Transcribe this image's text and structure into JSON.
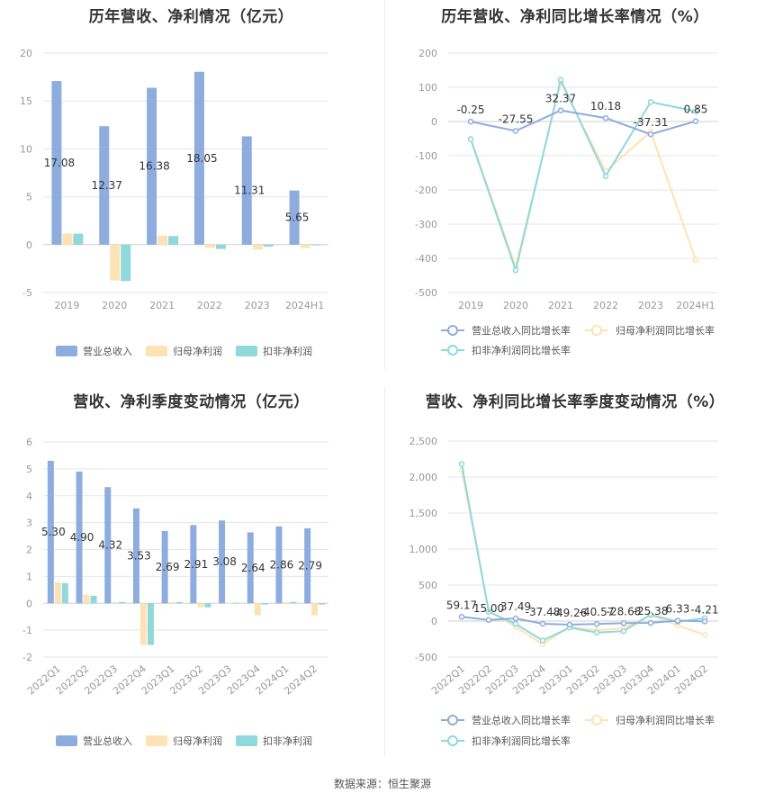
{
  "colors": {
    "revenue": "#8eadde",
    "net_profit": "#fde3b4",
    "deducted_profit": "#8fd8dc",
    "grid": "#e6e6e6",
    "axis_text": "#999999"
  },
  "footer": "数据来源：恒生聚源",
  "chart_data": [
    {
      "type": "bar",
      "title": "历年营收、净利情况（亿元）",
      "categories": [
        "2019",
        "2020",
        "2021",
        "2022",
        "2023",
        "2024H1"
      ],
      "series": [
        {
          "name": "营业总收入",
          "values": [
            17.08,
            12.37,
            16.38,
            18.05,
            11.31,
            5.65
          ]
        },
        {
          "name": "归母净利润",
          "values": [
            1.15,
            -3.75,
            0.95,
            -0.35,
            -0.5,
            -0.35
          ]
        },
        {
          "name": "扣非净利润",
          "values": [
            1.15,
            -3.8,
            0.9,
            -0.45,
            -0.2,
            -0.05
          ]
        }
      ],
      "data_labels": [
        "17.08",
        "12.37",
        "16.38",
        "18.05",
        "11.31",
        "5.65"
      ],
      "ylim": [
        -5,
        20
      ],
      "yticks": [
        "20",
        "15",
        "10",
        "5",
        "0",
        "-5"
      ],
      "legend": "bottom"
    },
    {
      "type": "line",
      "title": "历年营收、净利同比增长率情况（%）",
      "categories": [
        "2019",
        "2020",
        "2021",
        "2022",
        "2023",
        "2024H1"
      ],
      "series": [
        {
          "name": "营业总收入同比增长率",
          "values": [
            -0.25,
            -27.55,
            32.37,
            10.18,
            -37.31,
            0.85
          ]
        },
        {
          "name": "归母净利润同比增长率",
          "values": [
            -50,
            -425,
            115,
            -145,
            -30,
            -405
          ]
        },
        {
          "name": "扣非净利润同比增长率",
          "values": [
            -52,
            -435,
            122,
            -160,
            57,
            30
          ]
        }
      ],
      "data_labels": [
        "-0.25",
        "-27.55",
        "32.37",
        "10.18",
        "-37.31",
        "0.85"
      ],
      "ylim": [
        -500,
        200
      ],
      "yticks": [
        "200",
        "100",
        "0",
        "-100",
        "-200",
        "-300",
        "-400",
        "-500"
      ],
      "legend": "bottom"
    },
    {
      "type": "bar",
      "title": "营收、净利季度变动情况（亿元）",
      "categories": [
        "2022Q1",
        "2022Q2",
        "2022Q3",
        "2022Q4",
        "2023Q1",
        "2023Q2",
        "2023Q3",
        "2023Q4",
        "2024Q1",
        "2024Q2"
      ],
      "series": [
        {
          "name": "营业总收入",
          "values": [
            5.3,
            4.9,
            4.32,
            3.53,
            2.69,
            2.91,
            3.08,
            2.64,
            2.86,
            2.79
          ]
        },
        {
          "name": "归母净利润",
          "values": [
            0.78,
            0.32,
            0.05,
            -1.55,
            0.05,
            -0.15,
            0.02,
            -0.45,
            0.05,
            -0.45
          ]
        },
        {
          "name": "扣非净利润",
          "values": [
            0.75,
            0.28,
            0.05,
            -1.55,
            0.05,
            -0.15,
            0.02,
            -0.05,
            0.05,
            -0.05
          ]
        }
      ],
      "data_labels": [
        "5.30",
        "4.90",
        "4.32",
        "3.53",
        "2.69",
        "2.91",
        "3.08",
        "2.64",
        "2.86",
        "2.79"
      ],
      "ylim": [
        -2,
        6
      ],
      "yticks": [
        "6",
        "5",
        "4",
        "3",
        "2",
        "1",
        "0",
        "-1",
        "-2"
      ],
      "legend": "bottom"
    },
    {
      "type": "line",
      "title": "营收、净利同比增长率季度变动情况（%）",
      "categories": [
        "2022Q1",
        "2022Q2",
        "2022Q3",
        "2022Q4",
        "2023Q1",
        "2023Q2",
        "2023Q3",
        "2023Q4",
        "2024Q1",
        "2024Q2"
      ],
      "series": [
        {
          "name": "营业总收入同比增长率",
          "values": [
            59.17,
            15.0,
            37.49,
            -37.48,
            -49.26,
            -40.57,
            -28.68,
            -25.38,
            6.33,
            -4.21
          ]
        },
        {
          "name": "归母净利润同比增长率",
          "values": [
            2100,
            140,
            -80,
            -320,
            -80,
            -130,
            -100,
            80,
            -60,
            -190
          ]
        },
        {
          "name": "扣非净利润同比增长率",
          "values": [
            2180,
            130,
            -40,
            -270,
            -90,
            -160,
            -140,
            90,
            -10,
            40
          ]
        }
      ],
      "data_labels": [
        "59.17",
        "15.00",
        "37.49",
        "-37.48",
        "-49.26",
        "-40.57",
        "-28.68",
        "-25.38",
        "6.33",
        "-4.21"
      ],
      "ylim": [
        -500,
        2500
      ],
      "yticks": [
        "2,500",
        "2,000",
        "1,500",
        "1,000",
        "500",
        "0",
        "-500"
      ],
      "legend": "bottom"
    }
  ]
}
